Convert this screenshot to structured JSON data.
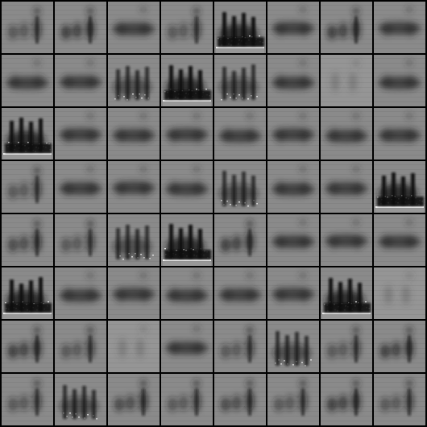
{
  "grid": {
    "rows": 8,
    "cols": 8,
    "background_color": "#000000",
    "tile_base_color": "#8a8a8a",
    "dark_color": "#111111",
    "light_color": "#ffffff",
    "tiles": [
      {
        "style": "three-blobs"
      },
      {
        "style": "three-blobs"
      },
      {
        "style": "band"
      },
      {
        "style": "three-blobs"
      },
      {
        "style": "spikes-contrast"
      },
      {
        "style": "band"
      },
      {
        "style": "three-blobs"
      },
      {
        "style": "band"
      },
      {
        "style": "band"
      },
      {
        "style": "band"
      },
      {
        "style": "spikes"
      },
      {
        "style": "spikes-contrast"
      },
      {
        "style": "spikes"
      },
      {
        "style": "band"
      },
      {
        "style": "faint"
      },
      {
        "style": "band"
      },
      {
        "style": "spikes-contrast"
      },
      {
        "style": "band"
      },
      {
        "style": "band"
      },
      {
        "style": "band"
      },
      {
        "style": "band"
      },
      {
        "style": "band"
      },
      {
        "style": "band"
      },
      {
        "style": "band"
      },
      {
        "style": "three-blobs"
      },
      {
        "style": "band"
      },
      {
        "style": "band"
      },
      {
        "style": "band"
      },
      {
        "style": "spikes"
      },
      {
        "style": "band"
      },
      {
        "style": "band"
      },
      {
        "style": "spikes-contrast"
      },
      {
        "style": "three-blobs"
      },
      {
        "style": "three-blobs"
      },
      {
        "style": "spikes"
      },
      {
        "style": "spikes-contrast"
      },
      {
        "style": "three-blobs"
      },
      {
        "style": "band"
      },
      {
        "style": "band"
      },
      {
        "style": "band"
      },
      {
        "style": "spikes-contrast"
      },
      {
        "style": "band"
      },
      {
        "style": "band"
      },
      {
        "style": "band"
      },
      {
        "style": "band"
      },
      {
        "style": "band"
      },
      {
        "style": "spikes-contrast"
      },
      {
        "style": "faint"
      },
      {
        "style": "three-blobs"
      },
      {
        "style": "three-blobs"
      },
      {
        "style": "faint"
      },
      {
        "style": "band"
      },
      {
        "style": "three-blobs"
      },
      {
        "style": "spikes"
      },
      {
        "style": "three-blobs"
      },
      {
        "style": "three-blobs"
      },
      {
        "style": "three-blobs"
      },
      {
        "style": "spikes"
      },
      {
        "style": "three-blobs"
      },
      {
        "style": "three-blobs"
      },
      {
        "style": "three-blobs"
      },
      {
        "style": "three-blobs"
      },
      {
        "style": "three-blobs"
      },
      {
        "style": "three-blobs"
      }
    ]
  }
}
